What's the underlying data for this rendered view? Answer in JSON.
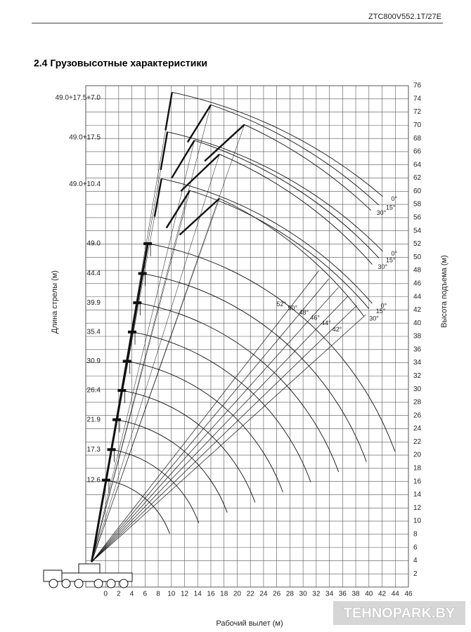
{
  "header": {
    "code": "ZTC800V552.1T/27E",
    "title": "2.4 Грузовысотные характеристики"
  },
  "chart_data": {
    "type": "crane-range",
    "x_label": "Рабочий вылет (м)",
    "y_label": "Высота подъема (м)",
    "boom_axis_label": "Длина стрелы (м)",
    "xlim": [
      -3,
      46
    ],
    "ylim": [
      0,
      76
    ],
    "xticks": [
      0,
      2,
      4,
      6,
      8,
      10,
      12,
      14,
      16,
      18,
      20,
      22,
      24,
      26,
      28,
      30,
      32,
      34,
      36,
      38,
      40,
      42,
      44,
      46
    ],
    "yticks": [
      2,
      4,
      6,
      8,
      10,
      12,
      14,
      16,
      18,
      20,
      22,
      24,
      26,
      28,
      30,
      32,
      34,
      36,
      38,
      40,
      42,
      44,
      46,
      48,
      50,
      52,
      54,
      56,
      58,
      60,
      62,
      64,
      66,
      68,
      70,
      72,
      74,
      76
    ],
    "grid": true,
    "color": "#111111",
    "booms": [
      12.6,
      17.3,
      21.9,
      26.4,
      30.9,
      35.4,
      39.9,
      44.4,
      {
        "value": 49,
        "label": "49.0"
      }
    ],
    "jib_configs": [
      {
        "label": "49.0+17.5+7.0",
        "offsets": [
          {
            "label": "0°",
            "tip_x": 10.1,
            "tip_y": 75.0,
            "end_x": 42.1,
            "end_y": 59.2
          },
          {
            "label": "15°",
            "tip_x": 16,
            "tip_y": 73.1,
            "end_x": 41.5,
            "end_y": 57.9
          },
          {
            "label": "30°",
            "tip_x": 21.1,
            "tip_y": 70.1,
            "end_x": 40.3,
            "end_y": 57.1
          }
        ]
      },
      {
        "label": "49.0+17.5",
        "offsets": [
          {
            "label": "0°",
            "tip_x": 9.4,
            "tip_y": 69,
            "end_x": 42.1,
            "end_y": 50.9
          },
          {
            "label": "15°",
            "tip_x": 13.5,
            "tip_y": 67.7,
            "end_x": 41.5,
            "end_y": 49.9
          },
          {
            "label": "30°",
            "tip_x": 17.3,
            "tip_y": 65.6,
            "end_x": 40.5,
            "end_y": 48.9
          }
        ]
      },
      {
        "label": "49.0+10.4",
        "offsets": [
          {
            "label": "0°",
            "tip_x": 8.5,
            "tip_y": 61.9,
            "end_x": 40.5,
            "end_y": 43
          },
          {
            "label": "15°",
            "tip_x": 12.8,
            "tip_y": 60.1,
            "end_x": 40,
            "end_y": 42.2
          },
          {
            "label": "30°",
            "tip_x": 17.3,
            "tip_y": 58.9,
            "end_x": 39.2,
            "end_y": 41.1
          }
        ]
      }
    ],
    "angle_lines": [
      {
        "value": 52,
        "label": "52°"
      },
      {
        "value": 50,
        "label": "50°"
      },
      {
        "value": 48,
        "label": "48°"
      },
      {
        "value": 46,
        "label": "46°"
      },
      {
        "value": 44,
        "label": "44°"
      },
      {
        "value": 42,
        "label": "42°"
      }
    ]
  },
  "watermark": "TEHNOPARK.BY"
}
